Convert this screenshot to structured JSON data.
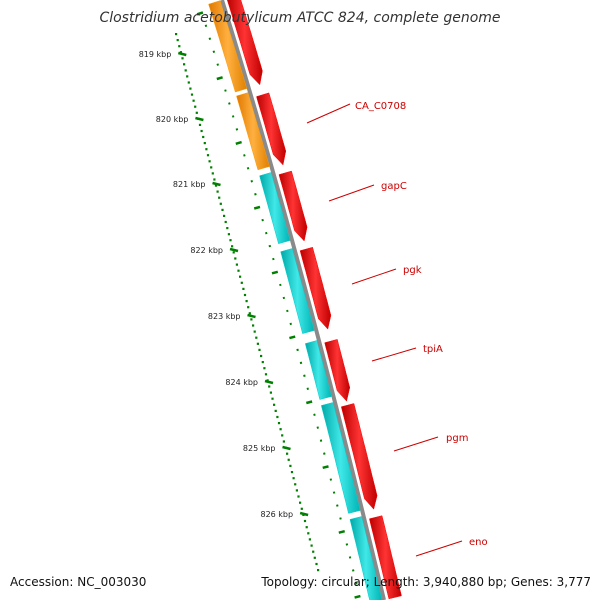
{
  "header": {
    "title": "Clostridium acetobutylicum ATCC 824, complete genome"
  },
  "footer": {
    "accession": "Accession: NC_003030",
    "topology": "Topology: circular; Length: 3,940,880 bp; Genes: 3,777"
  },
  "map": {
    "kbp_labels": [
      "819 kbp",
      "820 kbp",
      "821 kbp",
      "822 kbp",
      "823 kbp",
      "824 kbp",
      "825 kbp",
      "826 kbp"
    ],
    "genes": [
      "CA_C0708",
      "gapC",
      "pgk",
      "tpiA",
      "pgm",
      "eno"
    ],
    "colors": {
      "cds_red": "#ff0000",
      "gene_orange": "#ff9900",
      "gene_cyan": "#00cccc",
      "backbone": "#808080",
      "ticks": "#008000",
      "labels": "#cc0000"
    }
  }
}
